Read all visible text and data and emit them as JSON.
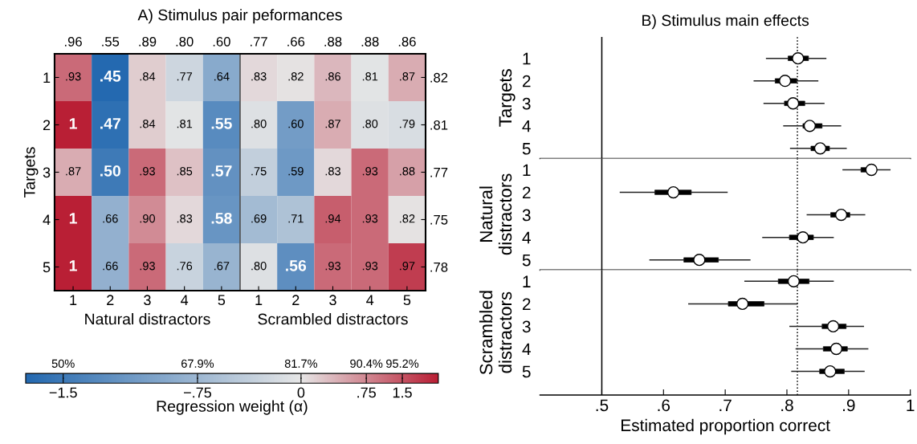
{
  "chart_data": [
    {
      "type": "heatmap",
      "title": "A) Stimulus pair peformances",
      "ylabel": "Targets",
      "categories": [
        "1",
        "2",
        "3",
        "4",
        "5",
        "1",
        "2",
        "3",
        "4",
        "5"
      ],
      "y_categories": [
        "1",
        "2",
        "3",
        "4",
        "5"
      ],
      "y2_categories": [
        ".82",
        ".81",
        ".77",
        ".75",
        ".78"
      ],
      "cells": [
        [
          0.93,
          0.45,
          0.84,
          0.77,
          0.64,
          0.83,
          0.82,
          0.86,
          0.81,
          0.87
        ],
        [
          1,
          0.47,
          0.84,
          0.81,
          0.55,
          0.8,
          0.6,
          0.87,
          0.8,
          0.79
        ],
        [
          0.87,
          0.5,
          0.93,
          0.85,
          0.57,
          0.75,
          0.59,
          0.83,
          0.93,
          0.88
        ],
        [
          1,
          0.66,
          0.9,
          0.83,
          0.58,
          0.69,
          0.71,
          0.94,
          0.93,
          0.82
        ],
        [
          1,
          0.66,
          0.93,
          0.76,
          0.67,
          0.8,
          0.56,
          0.93,
          0.93,
          0.97
        ]
      ],
      "cell_labels": [
        [
          ".93",
          ".45",
          ".84",
          ".77",
          ".64",
          ".83",
          ".82",
          ".86",
          ".81",
          ".87"
        ],
        [
          "1",
          ".47",
          ".84",
          ".81",
          ".55",
          ".80",
          ".60",
          ".87",
          ".80",
          ".79"
        ],
        [
          ".87",
          ".50",
          ".93",
          ".85",
          ".57",
          ".75",
          ".59",
          ".83",
          ".93",
          ".88"
        ],
        [
          "1",
          ".66",
          ".90",
          ".83",
          ".58",
          ".69",
          ".71",
          ".94",
          ".93",
          ".82"
        ],
        [
          "1",
          ".66",
          ".93",
          ".76",
          ".67",
          ".80",
          ".56",
          ".93",
          ".93",
          ".97"
        ]
      ],
      "clim": [
        0.45,
        1
      ],
      "clabel": "Regression weight (α)",
      "cticks": [
        {
          "value": 0.5,
          "label": "50%"
        },
        {
          "value": 0.679,
          "label": "67.9%"
        },
        {
          "value": 0.817,
          "label": "81.7%"
        },
        {
          "value": 0.904,
          "label": "90.4%"
        },
        {
          "value": 0.952,
          "label": "95.2%"
        }
      ],
      "annotations": [
        ".96",
        ".55",
        ".89",
        ".80",
        ".60",
        ".77",
        ".66",
        ".88",
        ".88",
        ".86",
        "Natural distractors",
        "Scrambled distractors",
        "−1.5",
        "−.75",
        "0",
        ".75",
        "1.5"
      ]
    },
    {
      "type": "box",
      "orientation": "horizontal",
      "title": "B) Stimulus main effects",
      "ylabel": "Targets",
      "marker": "circle",
      "tick_labels": "y",
      "categories": [
        "1",
        "2",
        "3",
        "4",
        "5"
      ],
      "boxes": [
        {
          "low": 0.767,
          "q1": 0.802,
          "median": 0.818,
          "q3": 0.835,
          "high": 0.863
        },
        {
          "low": 0.747,
          "q1": 0.781,
          "median": 0.797,
          "q3": 0.816,
          "high": 0.85
        },
        {
          "low": 0.763,
          "q1": 0.796,
          "median": 0.81,
          "q3": 0.829,
          "high": 0.86
        },
        {
          "low": 0.795,
          "q1": 0.826,
          "median": 0.837,
          "q3": 0.857,
          "high": 0.887
        },
        {
          "low": 0.806,
          "q1": 0.839,
          "median": 0.854,
          "q3": 0.869,
          "high": 0.896
        }
      ],
      "xlim": [
        0.4,
        1
      ],
      "ref_lines": [
        {
          "axis": "x",
          "value": 0.5,
          "line_style": "solid"
        },
        {
          "axis": "x",
          "value": 0.817,
          "line_style": "dotted"
        }
      ]
    },
    {
      "type": "box",
      "orientation": "horizontal",
      "ylabel": "Natural\ndistractors",
      "marker": "circle",
      "tick_labels": "y",
      "categories": [
        "1",
        "2",
        "3",
        "4",
        "5"
      ],
      "boxes": [
        {
          "low": 0.891,
          "q1": 0.92,
          "median": 0.937,
          "q3": 0.945,
          "high": 0.967
        },
        {
          "low": 0.53,
          "q1": 0.586,
          "median": 0.616,
          "q3": 0.645,
          "high": 0.703
        },
        {
          "low": 0.833,
          "q1": 0.871,
          "median": 0.888,
          "q3": 0.902,
          "high": 0.926
        },
        {
          "low": 0.761,
          "q1": 0.804,
          "median": 0.826,
          "q3": 0.843,
          "high": 0.875
        },
        {
          "low": 0.578,
          "q1": 0.633,
          "median": 0.658,
          "q3": 0.689,
          "high": 0.74
        }
      ],
      "xlim": [
        0.4,
        1
      ],
      "ref_lines": [
        {
          "axis": "x",
          "value": 0.5,
          "line_style": "solid"
        },
        {
          "axis": "x",
          "value": 0.817,
          "line_style": "dotted"
        }
      ]
    },
    {
      "type": "box",
      "orientation": "horizontal",
      "ylabel": "Scrambled\ndistractors",
      "xlabel": "Estimated proportion correct",
      "marker": "circle",
      "categories": [
        "1",
        "2",
        "3",
        "4",
        "5"
      ],
      "boxes": [
        {
          "low": 0.732,
          "q1": 0.786,
          "median": 0.811,
          "q3": 0.836,
          "high": 0.875
        },
        {
          "low": 0.641,
          "q1": 0.705,
          "median": 0.728,
          "q3": 0.763,
          "high": 0.816
        },
        {
          "low": 0.805,
          "q1": 0.857,
          "median": 0.875,
          "q3": 0.896,
          "high": 0.924
        },
        {
          "low": 0.815,
          "q1": 0.859,
          "median": 0.88,
          "q3": 0.898,
          "high": 0.931
        },
        {
          "low": 0.808,
          "q1": 0.853,
          "median": 0.87,
          "q3": 0.893,
          "high": 0.925
        }
      ],
      "xlim": [
        0.4,
        1
      ],
      "xticks": [
        {
          "value": 0.5,
          "label": ".5"
        },
        {
          "value": 0.6,
          "label": ".6"
        },
        {
          "value": 0.7,
          "label": ".7"
        },
        {
          "value": 0.8,
          "label": ".8"
        },
        {
          "value": 0.9,
          "label": ".9"
        },
        1
      ],
      "ref_lines": [
        {
          "axis": "x",
          "value": 0.5,
          "line_style": "solid"
        },
        {
          "axis": "x",
          "value": 0.817,
          "line_style": "dotted"
        }
      ]
    }
  ]
}
